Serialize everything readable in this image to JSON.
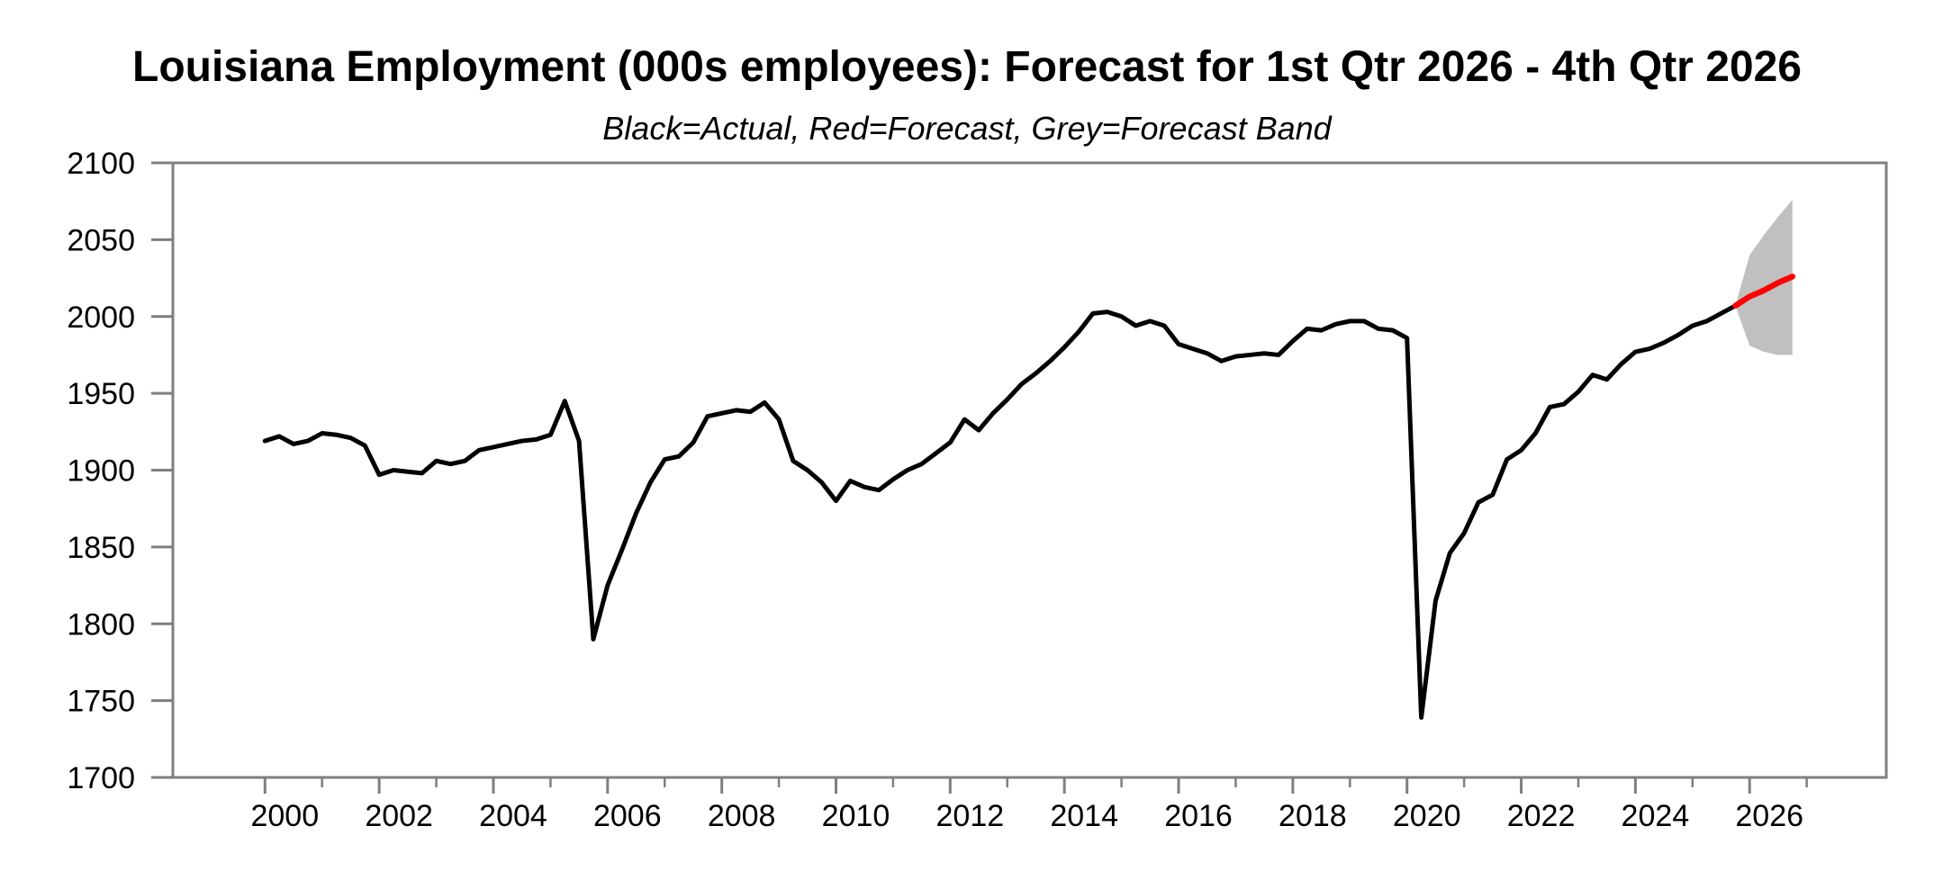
{
  "chart_data": {
    "type": "line",
    "title": "Louisiana Employment (000s employees): Forecast for 1st Qtr 2026 - 4th Qtr 2026",
    "subtitle": "Black=Actual, Red=Forecast, Grey=Forecast Band",
    "legend_note": "Black=Actual, Red=Forecast, Grey=Forecast Band",
    "ylim": [
      1700,
      2100
    ],
    "yticks": [
      1700,
      1750,
      1800,
      1850,
      1900,
      1950,
      2000,
      2050,
      2100
    ],
    "xticks_labeled": [
      2000,
      2002,
      2004,
      2006,
      2008,
      2010,
      2012,
      2014,
      2016,
      2018,
      2020,
      2022,
      2024,
      2026
    ],
    "x_minor_tick_years": [
      2001,
      2003,
      2005,
      2007,
      2009,
      2011,
      2013,
      2015,
      2017,
      2019,
      2021,
      2023,
      2025,
      2027
    ],
    "frequency": "quarterly",
    "colors": {
      "actual": "#000000",
      "forecast": "#ff0000",
      "band": "#c0c0c0",
      "axis": "#7f7f7f",
      "text": "#000000"
    },
    "actual": {
      "name": "Actual",
      "start_year": 2000,
      "start_quarter": 1,
      "values": [
        1919,
        1922,
        1917,
        1919,
        1924,
        1923,
        1921,
        1916,
        1897,
        1900,
        1899,
        1898,
        1906,
        1904,
        1906,
        1913,
        1915,
        1917,
        1919,
        1920,
        1923,
        1945,
        1919,
        1790,
        1825,
        1848,
        1872,
        1892,
        1907,
        1909,
        1918,
        1935,
        1937,
        1939,
        1938,
        1944,
        1933,
        1906,
        1900,
        1892,
        1880,
        1893,
        1889,
        1887,
        1894,
        1900,
        1904,
        1911,
        1918,
        1933,
        1926,
        1937,
        1946,
        1956,
        1963,
        1971,
        1980,
        1990,
        2002,
        2003,
        2000,
        1994,
        1997,
        1994,
        1982,
        1979,
        1976,
        1971,
        1974,
        1975,
        1976,
        1975,
        1984,
        1992,
        1991,
        1995,
        1997,
        1997,
        1992,
        1991,
        1986,
        1739,
        1815,
        1846,
        1859,
        1879,
        1884,
        1907,
        1913,
        1924,
        1941,
        1943,
        1951,
        1962,
        1959,
        1969,
        1977,
        1979,
        1983,
        1988,
        1994,
        1997,
        2002,
        2007
      ]
    },
    "forecast": {
      "name": "Forecast",
      "start_year": 2026,
      "start_quarter": 1,
      "values": [
        2013,
        2017,
        2022,
        2026
      ]
    },
    "forecast_band": {
      "name": "Forecast Band",
      "upper": [
        2040,
        2053,
        2065,
        2076
      ],
      "lower": [
        1981,
        1977,
        1975,
        1975
      ]
    }
  }
}
